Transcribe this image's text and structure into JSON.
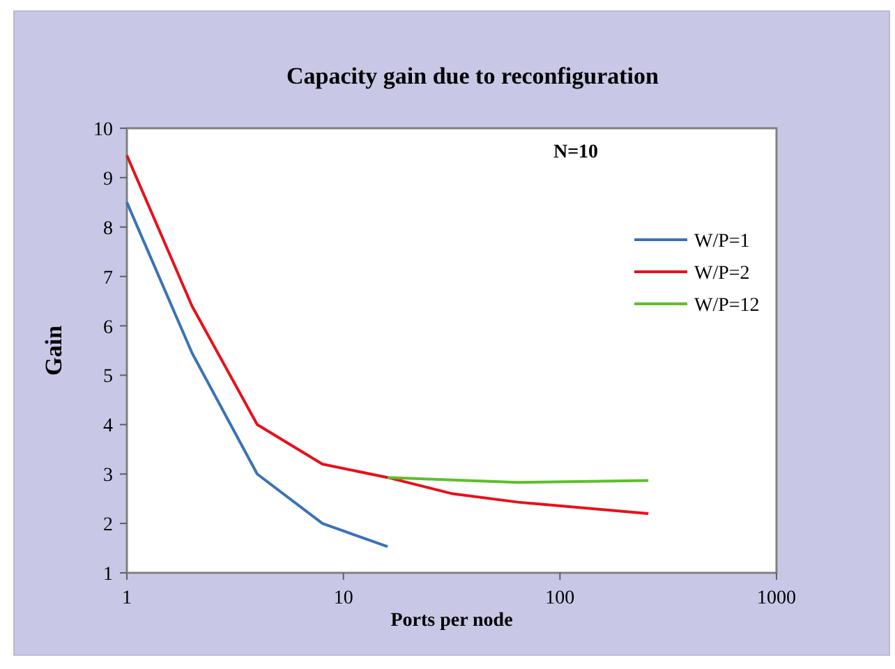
{
  "chart_data": {
    "type": "line",
    "title": "Capacity gain due to reconfiguration",
    "xlabel": "Ports per node",
    "ylabel": "Gain",
    "annotations": [
      "N=10"
    ],
    "log": "x",
    "xlim": [
      1,
      1000
    ],
    "xticks": [
      1,
      10,
      100,
      1000
    ],
    "ylim": [
      1,
      10
    ],
    "yticks": [
      1,
      2,
      3,
      4,
      5,
      6,
      7,
      8,
      9,
      10
    ],
    "grid": false,
    "legend": "right",
    "marker": "none",
    "line_style": "solid",
    "series": [
      {
        "name": "W/P=1",
        "color": "#3a72b8",
        "x": [
          1,
          2,
          4,
          8,
          16
        ],
        "values": [
          8.5,
          5.45,
          3.0,
          2.0,
          1.53
        ]
      },
      {
        "name": "W/P=2",
        "color": "#e8101a",
        "x": [
          1,
          2,
          4,
          8,
          16,
          32,
          64,
          256
        ],
        "values": [
          9.45,
          6.4,
          4.0,
          3.2,
          2.93,
          2.6,
          2.43,
          2.2
        ]
      },
      {
        "name": "W/P=12",
        "color": "#5cbf2a",
        "x": [
          16,
          64,
          256
        ],
        "values": [
          2.93,
          2.83,
          2.87
        ]
      }
    ]
  }
}
